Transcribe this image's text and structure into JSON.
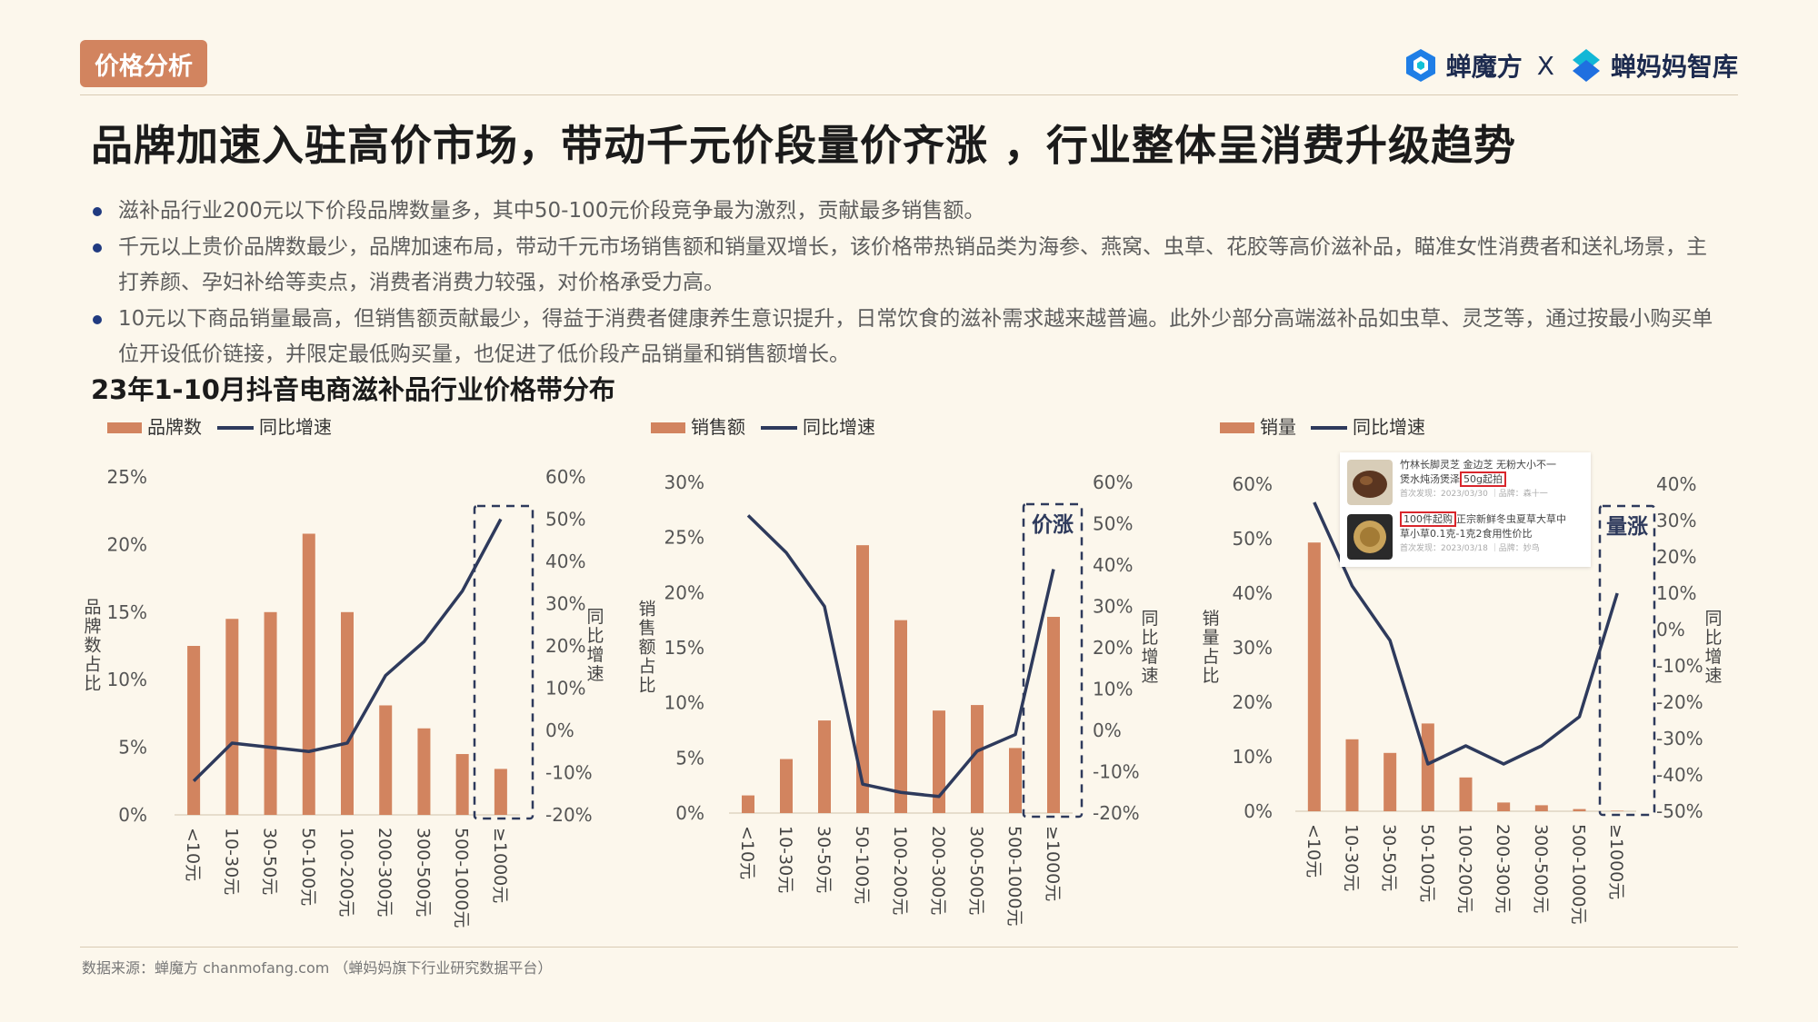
{
  "header": {
    "tag": "价格分析",
    "brand_left": "蝉魔方",
    "brand_sep": "X",
    "brand_right": "蝉妈妈智库",
    "title": "品牌加速入驻高价市场，带动千元价段量价齐涨 ，行业整体呈消费升级趋势"
  },
  "bullets": [
    "滋补品行业200元以下价段品牌数量多，其中50-100元价段竞争最为激烈，贡献最多销售额。",
    "千元以上贵价品牌数最少，品牌加速布局，带动千元市场销售额和销量双增长，该价格带热销品类为海参、燕窝、虫草、花胶等高价滋补品，瞄准女性消费者和送礼场景，主打养颜、孕妇补给等卖点，消费者消费力较强，对价格承受力高。",
    "10元以下商品销量最高，但销售额贡献最少，得益于消费者健康养生意识提升，日常饮食的滋补需求越来越普遍。此外少部分高端滋补品如虫草、灵芝等，通过按最小购买单位开设低价链接，并限定最低购买量，也促进了低价段产品销量和销售额增长。"
  ],
  "section_title": "23年1-10月抖音电商滋补品行业价格带分布",
  "source": "数据来源：蝉魔方 chanmofang.com （蝉妈妈旗下行业研究数据平台）",
  "colors": {
    "bar": "#d2845f",
    "line": "#2e3a5c",
    "tag": "#d2845f"
  },
  "inset": {
    "item1_line1": "竹林长脚灵芝 金边芝 无粉大小不一",
    "item1_line2_pre": "煲水炖汤煲泽",
    "item1_hl": "50g起拍",
    "item1_meta": "首次发现：2023/03/30 ｜品牌：森十一",
    "item2_hl": "100件起购",
    "item2_line1_post": "正宗新鲜冬虫夏草大草中",
    "item2_line2": "草小草0.1克-1克2食用性价比",
    "item2_meta": "首次发现：2023/03/18 ｜品牌：妙鸟"
  },
  "chart_data": [
    {
      "type": "bar",
      "categories": [
        "<10元",
        "10-30元",
        "30-50元",
        "50-100元",
        "100-200元",
        "200-300元",
        "300-500元",
        "500-1000元",
        "≥1000元"
      ],
      "series": [
        {
          "name": "品牌数",
          "type": "bar",
          "axis": "left",
          "values": [
            12.5,
            14.5,
            15.0,
            20.8,
            15.0,
            8.1,
            6.4,
            4.5,
            3.4
          ]
        },
        {
          "name": "同比增速",
          "type": "line",
          "axis": "right",
          "values": [
            -12,
            -3,
            -4,
            -5,
            -3,
            13,
            21,
            33,
            50
          ]
        }
      ],
      "ylabel": "品牌数占比",
      "y2label": "同比增速",
      "ylim": [
        0,
        25
      ],
      "yticks": [
        0,
        5,
        10,
        15,
        20,
        25
      ],
      "y2lim": [
        -20,
        60
      ],
      "y2ticks": [
        -20,
        -10,
        0,
        10,
        20,
        30,
        40,
        50,
        60
      ],
      "highlight": {
        "category": "≥1000元",
        "text": ""
      }
    },
    {
      "type": "bar",
      "categories": [
        "<10元",
        "10-30元",
        "30-50元",
        "50-100元",
        "100-200元",
        "200-300元",
        "300-500元",
        "500-1000元",
        "≥1000元"
      ],
      "series": [
        {
          "name": "销售额",
          "type": "bar",
          "axis": "left",
          "values": [
            1.6,
            4.9,
            8.4,
            24.3,
            17.5,
            9.3,
            9.8,
            5.9,
            17.8
          ]
        },
        {
          "name": "同比增速",
          "type": "line",
          "axis": "right",
          "values": [
            52,
            43,
            30,
            -13,
            -15,
            -16,
            -5,
            -1,
            39
          ]
        }
      ],
      "ylabel": "销售额占比",
      "y2label": "同比增速",
      "ylim": [
        0,
        30
      ],
      "yticks": [
        0,
        5,
        10,
        15,
        20,
        25,
        30
      ],
      "y2lim": [
        -20,
        60
      ],
      "y2ticks": [
        -20,
        -10,
        0,
        10,
        20,
        30,
        40,
        50,
        60
      ],
      "highlight": {
        "category": "≥1000元",
        "text": "价涨"
      }
    },
    {
      "type": "bar",
      "categories": [
        "<10元",
        "10-30元",
        "30-50元",
        "50-100元",
        "100-200元",
        "200-300元",
        "300-500元",
        "500-1000元",
        "≥1000元"
      ],
      "series": [
        {
          "name": "销量",
          "type": "bar",
          "axis": "left",
          "values": [
            49.3,
            13.2,
            10.7,
            16.1,
            6.2,
            1.6,
            1.1,
            0.4,
            0.1
          ]
        },
        {
          "name": "同比增速",
          "type": "line",
          "axis": "right",
          "values": [
            35,
            12,
            -3,
            -37,
            -32,
            -37,
            -32,
            -24,
            10
          ]
        }
      ],
      "ylabel": "销量占比",
      "y2label": "同比增速",
      "ylim": [
        0,
        60
      ],
      "yticks": [
        0,
        10,
        20,
        30,
        40,
        50,
        60
      ],
      "y2lim": [
        -50,
        40
      ],
      "y2ticks": [
        -50,
        -40,
        -30,
        -20,
        -10,
        0,
        10,
        20,
        30,
        40
      ],
      "highlight": {
        "category": "≥1000元",
        "text": "量涨"
      }
    }
  ]
}
